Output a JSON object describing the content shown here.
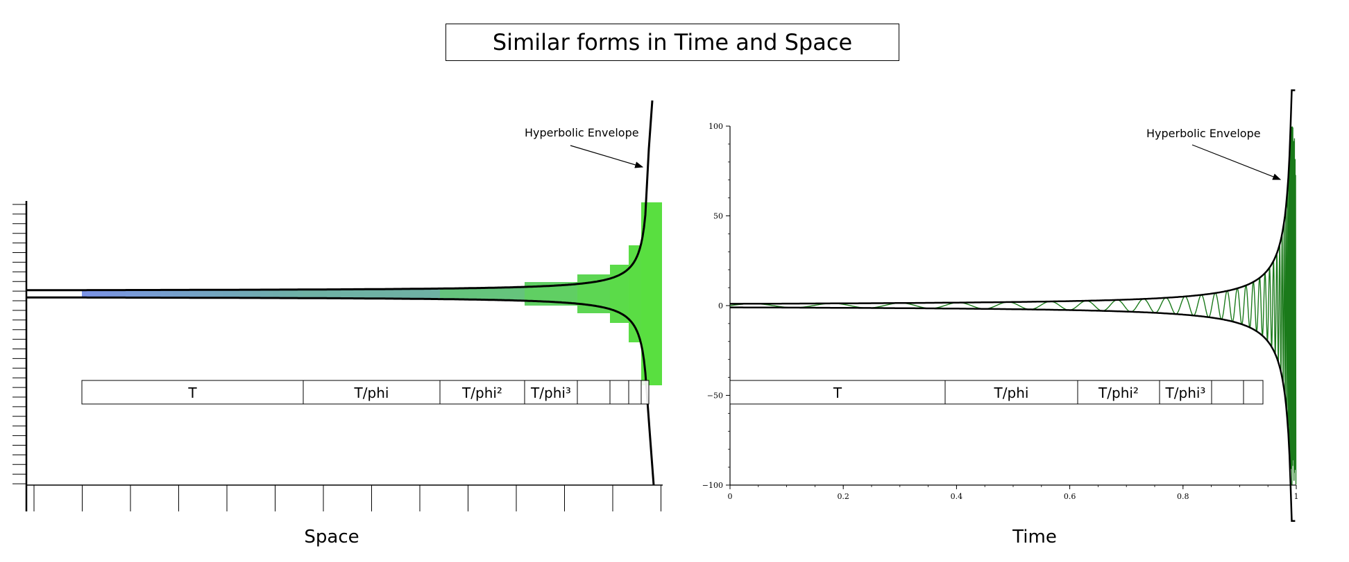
{
  "title": "Similar forms in Time and Space",
  "left_panel": {
    "xlabel": "Space",
    "annotation": "Hyperbolic Envelope",
    "segments": [
      {
        "label": "T"
      },
      {
        "label": "T/phi"
      },
      {
        "label": "T/phi²"
      },
      {
        "label": "T/phi³"
      },
      {
        "label": ""
      },
      {
        "label": ""
      },
      {
        "label": ""
      },
      {
        "label": ""
      }
    ]
  },
  "right_panel": {
    "xlabel": "Time",
    "annotation": "Hyperbolic Envelope",
    "segments": [
      {
        "label": "T"
      },
      {
        "label": "T/phi"
      },
      {
        "label": "T/phi²"
      },
      {
        "label": "T/phi³"
      },
      {
        "label": ""
      },
      {
        "label": ""
      }
    ]
  },
  "chart_data": {
    "type": "line",
    "xlabel": "Time",
    "x_ticks": [
      "0",
      "0.2",
      "0.4",
      "0.6",
      "0.8",
      "1"
    ],
    "y_ticks": [
      "100",
      "50",
      "0",
      "−50",
      "−100"
    ],
    "xlim": [
      0,
      1
    ],
    "ylim": [
      -100,
      100
    ],
    "series": [
      {
        "color": "#1a7a1a",
        "kind": "oscillation between hyperbolic envelope"
      },
      {
        "color": "#000000",
        "kind": "upper envelope"
      },
      {
        "color": "#000000",
        "kind": "lower envelope"
      }
    ]
  },
  "colors": {
    "axis": "#000000",
    "oscillation": "#1a7a1a",
    "space_start": "#7b93e6",
    "space_end": "#58e23a"
  }
}
